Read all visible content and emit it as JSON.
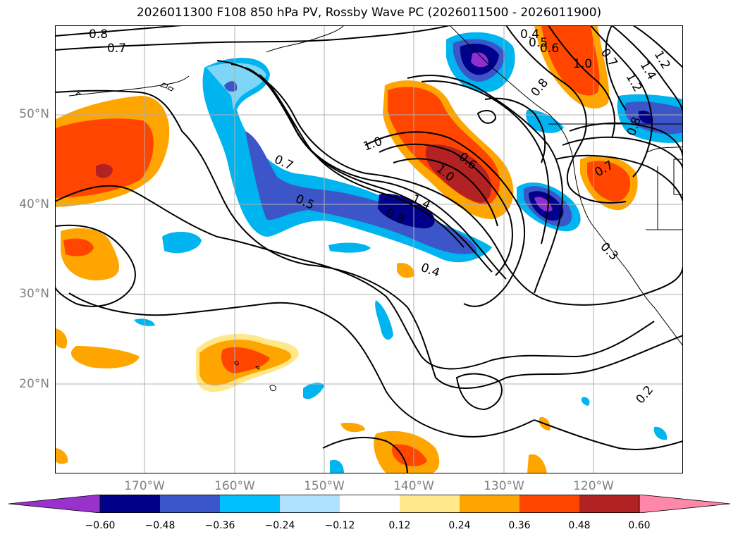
{
  "title": "2026011300 F108 850 hPa PV, Rossby Wave PC (2026011500 - 2026011900)",
  "map": {
    "lat_labels": [
      "50°N",
      "40°N",
      "30°N",
      "20°N"
    ],
    "lon_labels": [
      "170°W",
      "160°W",
      "150°W",
      "140°W",
      "130°W",
      "120°W"
    ],
    "contour_labels": [
      "0.8",
      "0.7",
      "0.4",
      "0.5",
      "0.6",
      "0.7",
      "1.2",
      "1.4",
      "1.2",
      "1.0",
      "0.8",
      "0.8",
      "1.0",
      "0.6",
      "1.0",
      "0.7",
      "0.5",
      "0.8",
      "1.4",
      "0.7",
      "0.4",
      "0.3",
      "0.2"
    ],
    "colors": {
      "coast": "#000000",
      "grid": "#b0b0b0",
      "purple": "#8f2fd0",
      "navy": "#00008b",
      "royal": "#3c55c8",
      "cyan": "#00b4f0",
      "lightblue": "#b4e4fa",
      "lightyellow": "#ffe88a",
      "orange": "#ffa500",
      "orangered": "#ff4500",
      "firebrick": "#b22222",
      "pink": "#ff88aa"
    }
  },
  "colorbar": {
    "ticks": [
      "−0.60",
      "−0.48",
      "−0.36",
      "−0.24",
      "−0.12",
      "0.12",
      "0.24",
      "0.36",
      "0.48",
      "0.60"
    ],
    "colors": [
      "#9932cc",
      "#00008b",
      "#3a55c9",
      "#00bfff",
      "#b0e2ff",
      "#ffffff",
      "#ffe98a",
      "#ffa500",
      "#ff4500",
      "#b22222",
      "#ff88aa"
    ]
  }
}
